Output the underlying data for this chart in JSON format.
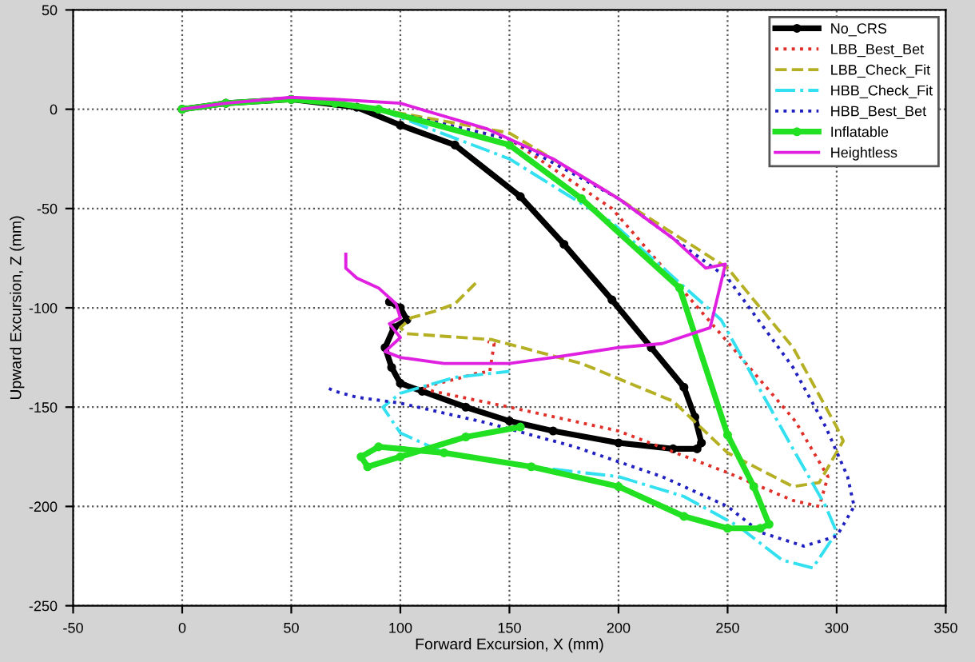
{
  "chart_data": {
    "type": "line",
    "xlabel": "Forward Excursion, X (mm)",
    "ylabel": "Upward Excursion, Z (mm)",
    "xlim": [
      -50,
      350
    ],
    "xticks": [
      -50,
      0,
      50,
      100,
      150,
      200,
      250,
      300,
      350
    ],
    "ylim": [
      -250,
      50
    ],
    "yticks": [
      -250,
      -200,
      -150,
      -100,
      -50,
      0,
      50
    ],
    "grid": true,
    "legend": "top right",
    "series": [
      {
        "name": "No_CRS",
        "color": "#000000",
        "marker": "circle",
        "line_style": "solid",
        "x": [
          0,
          20,
          50,
          80,
          100,
          125,
          155,
          175,
          197,
          215,
          230,
          235,
          238,
          236,
          225,
          200,
          170,
          150,
          130,
          110,
          100,
          96,
          93,
          97,
          103,
          100,
          95
        ],
        "values": [
          0,
          3,
          5,
          1,
          -8,
          -18,
          -44,
          -68,
          -96,
          -120,
          -140,
          -155,
          -168,
          -171,
          -171,
          -168,
          -162,
          -157,
          -150,
          -142,
          -138,
          -130,
          -120,
          -110,
          -106,
          -100,
          -97
        ]
      },
      {
        "name": "LBB_Best_Bet",
        "color": "#e0302a",
        "line_style": "dotted",
        "x": [
          90,
          150,
          197,
          253,
          281,
          296,
          292,
          280,
          250,
          200,
          150,
          115,
          110,
          125,
          135,
          141,
          143,
          140
        ],
        "values": [
          0,
          -15,
          -50,
          -121,
          -157,
          -185,
          -200,
          -197,
          -183,
          -162,
          -150,
          -142,
          -140,
          -136,
          -133,
          -132,
          -118,
          -117
        ]
      },
      {
        "name": "LBB_Check_Fit",
        "color": "#b5b023",
        "line_style": "dashed",
        "x": [
          90,
          150,
          200,
          250,
          280,
          300,
          303,
          292,
          280,
          250,
          225,
          183,
          142,
          103,
          100,
          105,
          115,
          125,
          135
        ],
        "values": [
          0,
          -12,
          -45,
          -80,
          -120,
          -160,
          -167,
          -188,
          -190,
          -173,
          -147,
          -128,
          -116,
          -113,
          -110,
          -105,
          -102,
          -98,
          -87
        ]
      },
      {
        "name": "HBB_Check_Fit",
        "color": "#33e0f0",
        "line_style": "dashdot",
        "x": [
          90,
          150,
          197,
          247,
          281,
          295,
          300,
          289,
          275,
          255,
          230,
          200,
          160,
          120,
          100,
          92,
          100,
          125,
          150
        ],
        "values": [
          0,
          -25,
          -57,
          -106,
          -173,
          -200,
          -213,
          -231,
          -227,
          -210,
          -195,
          -185,
          -180,
          -173,
          -163,
          -150,
          -143,
          -135,
          -132
        ]
      },
      {
        "name": "HBB_Best_Bet",
        "color": "#2020c0",
        "line_style": "dotted",
        "x": [
          90,
          150,
          200,
          250,
          280,
          295,
          305,
          308,
          300,
          285,
          265,
          250,
          220,
          180,
          140,
          100,
          80,
          70,
          66
        ],
        "values": [
          0,
          -15,
          -45,
          -85,
          -130,
          -160,
          -185,
          -200,
          -215,
          -220,
          -213,
          -200,
          -185,
          -170,
          -158,
          -148,
          -145,
          -142,
          -140
        ]
      },
      {
        "name": "Inflatable",
        "color": "#22e022",
        "marker": "circle",
        "line_style": "solid",
        "x": [
          0,
          20,
          50,
          70,
          90,
          150,
          183,
          228,
          250,
          262,
          269,
          265,
          250,
          230,
          200,
          160,
          120,
          90,
          82,
          85,
          100,
          130,
          155
        ],
        "values": [
          0,
          3,
          5,
          3,
          0,
          -18,
          -45,
          -90,
          -164,
          -190,
          -209,
          -211,
          -211,
          -205,
          -190,
          -180,
          -173,
          -170,
          -175,
          -180,
          -175,
          -165,
          -160
        ]
      },
      {
        "name": "Heightless",
        "color": "#e020e0",
        "line_style": "solid",
        "x": [
          0,
          20,
          50,
          70,
          100,
          140,
          170,
          200,
          225,
          240,
          249,
          242,
          220,
          200,
          170,
          150,
          120,
          100,
          93,
          100,
          95,
          100,
          98,
          90,
          80,
          75,
          75
        ],
        "values": [
          0,
          3,
          6,
          5,
          3,
          -10,
          -25,
          -45,
          -65,
          -80,
          -78,
          -110,
          -118,
          -120,
          -125,
          -128,
          -128,
          -125,
          -122,
          -115,
          -108,
          -105,
          -98,
          -90,
          -85,
          -80,
          -73
        ]
      }
    ]
  }
}
